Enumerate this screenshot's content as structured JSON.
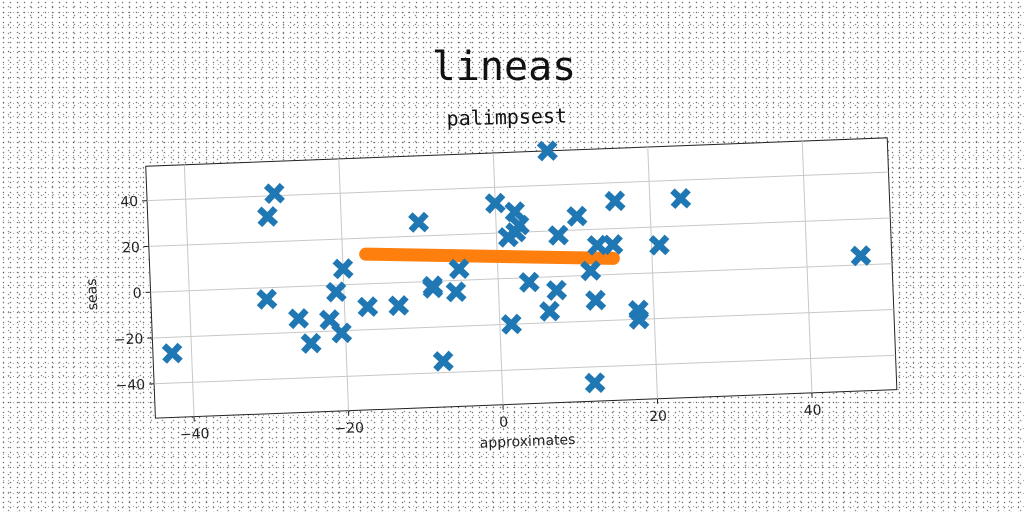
{
  "chart_data": {
    "type": "scatter",
    "title": "lineas",
    "subtitle": "palimpsest",
    "xlabel": "approximates",
    "ylabel": "seas",
    "xlim": [
      -45,
      51
    ],
    "ylim": [
      -55,
      55
    ],
    "xticks": [
      -40,
      -20,
      0,
      20,
      40
    ],
    "yticks": [
      -40,
      -20,
      0,
      20,
      40
    ],
    "grid": true,
    "series": [
      {
        "kind": "scatter",
        "marker": "x",
        "color": "#1f77b4",
        "points": [
          [
            -42.5,
            -27
          ],
          [
            -30,
            -5
          ],
          [
            -29.5,
            31
          ],
          [
            -28.5,
            41
          ],
          [
            -26,
            -14
          ],
          [
            -24.5,
            -25
          ],
          [
            -22,
            -15
          ],
          [
            -21,
            -3
          ],
          [
            -20.5,
            -21
          ],
          [
            -20,
            7
          ],
          [
            -17,
            -10
          ],
          [
            -13,
            -10
          ],
          [
            -10,
            26
          ],
          [
            -8.5,
            -2
          ],
          [
            -8.5,
            -3
          ],
          [
            -7.5,
            -35
          ],
          [
            -5.5,
            -5
          ],
          [
            -5,
            5
          ],
          [
            0,
            33
          ],
          [
            1.5,
            18
          ],
          [
            1.5,
            -20
          ],
          [
            2.5,
            29
          ],
          [
            2.5,
            20
          ],
          [
            3,
            23
          ],
          [
            4,
            -2
          ],
          [
            7,
            55
          ],
          [
            6.5,
            -15
          ],
          [
            7.5,
            -6
          ],
          [
            8,
            18
          ],
          [
            10.5,
            26
          ],
          [
            12,
            2
          ],
          [
            12.5,
            -11
          ],
          [
            13,
            13
          ],
          [
            12,
            -47
          ],
          [
            15,
            13
          ],
          [
            15.5,
            32
          ],
          [
            18,
            -16
          ],
          [
            18,
            -20
          ],
          [
            21,
            12
          ],
          [
            24,
            32
          ],
          [
            47,
            4
          ]
        ]
      },
      {
        "kind": "line",
        "color": "#ff7f0e",
        "points": [
          [
            -17,
            13
          ],
          [
            15,
            7
          ]
        ]
      }
    ]
  }
}
